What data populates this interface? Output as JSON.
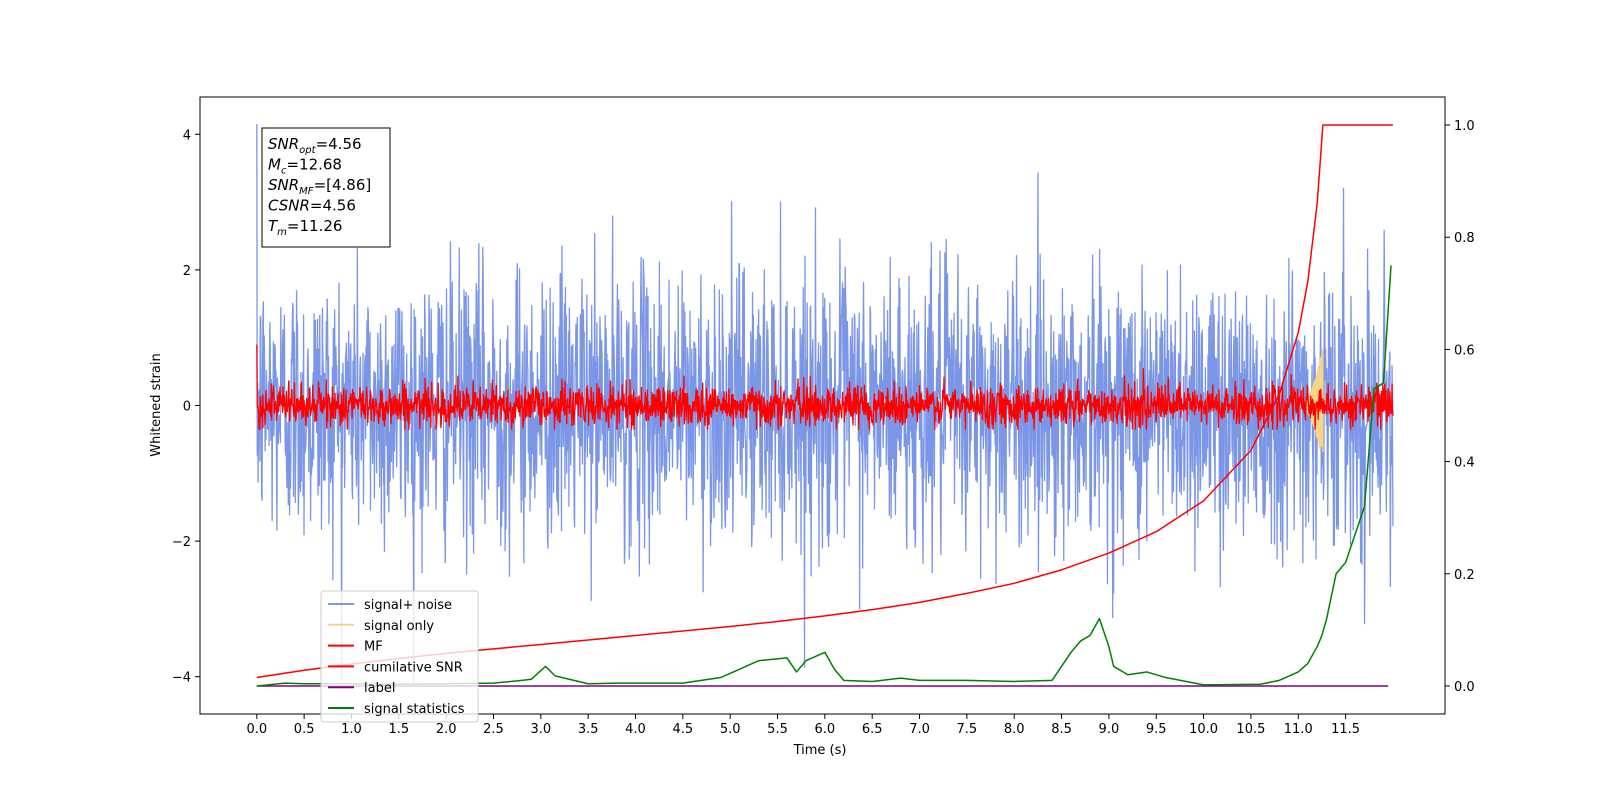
{
  "chart_data": {
    "type": "line",
    "xlabel": "Time (s)",
    "ylabel": "Whitened strain",
    "xlim": [
      -0.6,
      12.55
    ],
    "ylim": [
      -4.55,
      4.55
    ],
    "y2lim": [
      -0.05,
      1.05
    ],
    "xticks": [
      0.0,
      0.5,
      1.0,
      1.5,
      2.0,
      2.5,
      3.0,
      3.5,
      4.0,
      4.5,
      5.0,
      5.5,
      6.0,
      6.5,
      7.0,
      7.5,
      8.0,
      8.5,
      9.0,
      9.5,
      10.0,
      10.5,
      11.0,
      11.5
    ],
    "xtick_labels": [
      "0.0",
      "0.5",
      "1.0",
      "1.5",
      "2.0",
      "2.5",
      "3.0",
      "3.5",
      "4.0",
      "4.5",
      "5.0",
      "5.5",
      "6.0",
      "6.5",
      "7.0",
      "7.5",
      "8.0",
      "8.5",
      "9.0",
      "9.5",
      "10.0",
      "10.5",
      "11.0",
      "11.5"
    ],
    "yticks": [
      -4,
      -2,
      0,
      2,
      4
    ],
    "ytick_labels": [
      "−4",
      "−2",
      "0",
      "2",
      "4"
    ],
    "y2ticks": [
      0.0,
      0.2,
      0.4,
      0.6,
      0.8,
      1.0
    ],
    "y2tick_labels": [
      "0.0",
      "0.2",
      "0.4",
      "0.6",
      "0.8",
      "1.0"
    ],
    "info_box": [
      {
        "base": "SNR",
        "sub": "opt",
        "rest": "=4.56"
      },
      {
        "base": "M",
        "sub": "c",
        "rest": "=12.68"
      },
      {
        "base": "SNR",
        "sub": "MF",
        "rest": "=[4.86]"
      },
      {
        "base": "CSNR",
        "sub": "",
        "rest": "=4.56"
      },
      {
        "base": "T",
        "sub": "m",
        "rest": "=11.26"
      }
    ],
    "legend": {
      "placement": "lower-left",
      "entries": [
        {
          "label": "signal+ noise",
          "color": "#7b96e6"
        },
        {
          "label": "signal only",
          "color": "#f5d58a"
        },
        {
          "label": "MF",
          "color": "#ff0000"
        },
        {
          "label": "cumilative SNR",
          "color": "#ff0000"
        },
        {
          "label": "label",
          "color": "#800080"
        },
        {
          "label": "signal statistics",
          "color": "#008000"
        }
      ]
    },
    "series": [
      {
        "name": "signal+ noise",
        "axis": "left",
        "color": "#7b96e6",
        "kind": "noise",
        "x_range": [
          0.0,
          12.0
        ],
        "std": 1.0,
        "range_observed": [
          -4.1,
          4.15
        ]
      },
      {
        "name": "signal only",
        "axis": "left",
        "color": "#f5d58a",
        "kind": "chirp",
        "merger_time": 11.26,
        "peak_amplitude": 0.85
      },
      {
        "name": "MF",
        "axis": "left",
        "color": "#ff0000",
        "kind": "noise",
        "x_range": [
          0.0,
          12.0
        ],
        "std": 0.15,
        "range_observed": [
          -0.35,
          0.9
        ]
      },
      {
        "name": "cumilative SNR",
        "axis": "right",
        "color": "#ff0000",
        "x": [
          0.0,
          0.5,
          1.0,
          1.5,
          2.0,
          2.5,
          3.0,
          3.5,
          4.0,
          4.5,
          5.0,
          5.5,
          6.0,
          6.5,
          7.0,
          7.5,
          8.0,
          8.5,
          9.0,
          9.5,
          10.0,
          10.5,
          10.8,
          11.0,
          11.1,
          11.2,
          11.26,
          11.5,
          12.0
        ],
        "y": [
          0.015,
          0.028,
          0.039,
          0.049,
          0.058,
          0.066,
          0.074,
          0.082,
          0.09,
          0.098,
          0.106,
          0.115,
          0.125,
          0.136,
          0.149,
          0.165,
          0.183,
          0.207,
          0.237,
          0.275,
          0.33,
          0.42,
          0.52,
          0.63,
          0.72,
          0.86,
          1.0,
          1.0,
          1.0
        ]
      },
      {
        "name": "label",
        "axis": "right",
        "color": "#800080",
        "x": [
          0.0,
          11.95
        ],
        "y": [
          0.0,
          0.0
        ]
      },
      {
        "name": "signal statistics",
        "axis": "right",
        "color": "#008000",
        "x": [
          0.0,
          0.3,
          0.5,
          1.0,
          1.5,
          2.0,
          2.5,
          2.8,
          2.9,
          3.05,
          3.15,
          3.3,
          3.5,
          3.8,
          4.5,
          4.9,
          5.1,
          5.3,
          5.6,
          5.7,
          5.8,
          6.0,
          6.1,
          6.2,
          6.5,
          6.8,
          7.0,
          7.5,
          8.0,
          8.4,
          8.6,
          8.7,
          8.8,
          8.9,
          9.0,
          9.05,
          9.2,
          9.4,
          9.6,
          10.0,
          10.6,
          10.8,
          11.0,
          11.1,
          11.2,
          11.25,
          11.3,
          11.4,
          11.5,
          11.7,
          11.8,
          11.9,
          11.98
        ],
        "y": [
          0.0,
          0.005,
          0.004,
          0.004,
          0.003,
          0.004,
          0.005,
          0.01,
          0.012,
          0.035,
          0.018,
          0.012,
          0.004,
          0.005,
          0.005,
          0.015,
          0.03,
          0.045,
          0.05,
          0.025,
          0.045,
          0.06,
          0.03,
          0.01,
          0.008,
          0.014,
          0.01,
          0.01,
          0.008,
          0.01,
          0.06,
          0.08,
          0.09,
          0.12,
          0.07,
          0.035,
          0.02,
          0.025,
          0.015,
          0.002,
          0.003,
          0.01,
          0.025,
          0.04,
          0.07,
          0.09,
          0.12,
          0.2,
          0.22,
          0.32,
          0.53,
          0.54,
          0.75
        ]
      }
    ]
  }
}
